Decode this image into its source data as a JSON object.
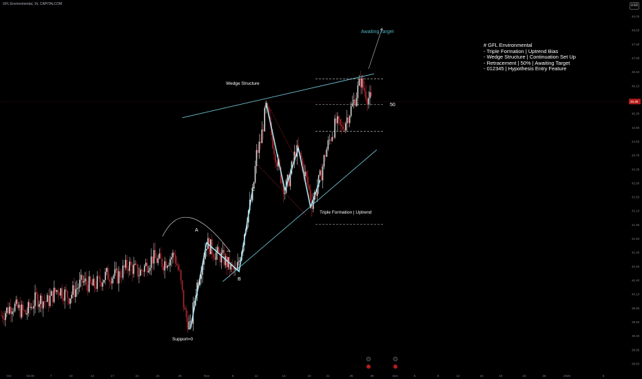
{
  "header": {
    "symbol_title": "GFL Environmental, 1h, CAPITALCOM",
    "currency_button": "USD"
  },
  "info_box": {
    "lines": [
      "# GFL Environmental",
      "- Triple Formation | Uptrend Bias",
      "- Wedge Structure | Continuation Set Up",
      "- Retracement | 50% | Awaiting Target",
      "- 012345 | Hypothesis Entry Feature"
    ]
  },
  "annotations": {
    "awaiting_target": "Awaiting Target",
    "wedge_structure": "Wedge Structure",
    "fifty": "50",
    "point_c": "C",
    "point_a": "A",
    "point_b": "B",
    "triple_formation": "Triple Formation | Uptrend",
    "support": "Support=0"
  },
  "colors": {
    "background": "#000000",
    "candle_up": "#d9d9d9",
    "candle_down": "#b2272f",
    "pattern_line": "#a8e8f4",
    "trendline": "#6fc3d3",
    "target_text": "#4fb3c2",
    "price_tag": "#b71c1c"
  },
  "chart_data": {
    "type": "candlestick",
    "title": "GFL Environmental, 1h, CAPITALCOM",
    "xlabel": "",
    "ylabel": "",
    "x_tick_labels": [
      "Oct",
      "03:30",
      "7",
      "10",
      "14",
      "17",
      "21",
      "24",
      "28",
      "Nov",
      "6",
      "11",
      "14",
      "18",
      "21",
      "25",
      "28",
      "Dec",
      "5",
      "9",
      "12",
      "16",
      "19",
      "23",
      "26",
      "2025",
      "6"
    ],
    "y_tick_labels": [
      "49.00",
      "48.60",
      "47.50",
      "47.00",
      "46.50",
      "46.10",
      "45.70",
      "45.30",
      "44.90",
      "44.50",
      "43.70",
      "43.30",
      "42.90",
      "42.50",
      "42.10",
      "41.90",
      "41.50",
      "41.20",
      "40.80",
      "40.40",
      "40.10",
      "39.90",
      "39.60",
      "39.40",
      "38.95",
      "38.60"
    ],
    "ylim": [
      38.45,
      49.1
    ],
    "current_price": "46.38",
    "price_path": [
      [
        0,
        40.05
      ],
      [
        4,
        40.35
      ],
      [
        9,
        40.1
      ],
      [
        13,
        40.55
      ],
      [
        17,
        40.45
      ],
      [
        21,
        40.85
      ],
      [
        25,
        40.6
      ],
      [
        30,
        41.05
      ],
      [
        34,
        40.9
      ],
      [
        39,
        41.25
      ],
      [
        43,
        41.2
      ],
      [
        47,
        41.55
      ],
      [
        51,
        41.3
      ],
      [
        56,
        41.75
      ],
      [
        60,
        41.6
      ],
      [
        64,
        41.85
      ],
      [
        66,
        41.25
      ],
      [
        68,
        40.1
      ],
      [
        70,
        39.65
      ],
      [
        72,
        40.8
      ],
      [
        74,
        41.5
      ],
      [
        76,
        42.2
      ],
      [
        79,
        41.9
      ],
      [
        82,
        41.75
      ],
      [
        85,
        41.45
      ],
      [
        87,
        41.3
      ],
      [
        89,
        42.05
      ],
      [
        91,
        43.0
      ],
      [
        93,
        43.6
      ],
      [
        94.5,
        44.8
      ],
      [
        96,
        45.2
      ],
      [
        98,
        46.2
      ],
      [
        99.5,
        45.6
      ],
      [
        101,
        45.0
      ],
      [
        103,
        44.3
      ],
      [
        105,
        43.75
      ],
      [
        107,
        44.2
      ],
      [
        109,
        44.95
      ],
      [
        111,
        44.65
      ],
      [
        113,
        44.05
      ],
      [
        115,
        43.4
      ],
      [
        116.5,
        43.75
      ],
      [
        118,
        44.1
      ],
      [
        120,
        44.85
      ],
      [
        122,
        45.35
      ],
      [
        124,
        45.75
      ],
      [
        126,
        45.55
      ],
      [
        128,
        45.9
      ],
      [
        130,
        46.25
      ],
      [
        131.5,
        46.6
      ],
      [
        133,
        47.0
      ],
      [
        134,
        46.8
      ],
      [
        135.5,
        46.55
      ],
      [
        137,
        46.38
      ]
    ],
    "patterns": {
      "wedge_upper": [
        [
          67,
          45.9
        ],
        [
          138,
          47.2
        ]
      ],
      "wedge_lower": [
        [
          82,
          41.05
        ],
        [
          139,
          44.95
        ]
      ],
      "zigzag_abc": [
        [
          70,
          39.65
        ],
        [
          76,
          42.2
        ],
        [
          88,
          41.35
        ],
        [
          93,
          43.75
        ]
      ],
      "triple_formation": [
        [
          98,
          46.35
        ],
        [
          105,
          43.75
        ],
        [
          110,
          45.0
        ],
        [
          114.5,
          43.25
        ],
        [
          118,
          44.05
        ]
      ],
      "retracement_levels": {
        "upper": 47.05,
        "mid": 46.3,
        "lower": 45.5,
        "support": 42.75
      },
      "arrow_target": [
        [
          136,
          47.35
        ],
        [
          141,
          48.55
        ]
      ]
    }
  }
}
